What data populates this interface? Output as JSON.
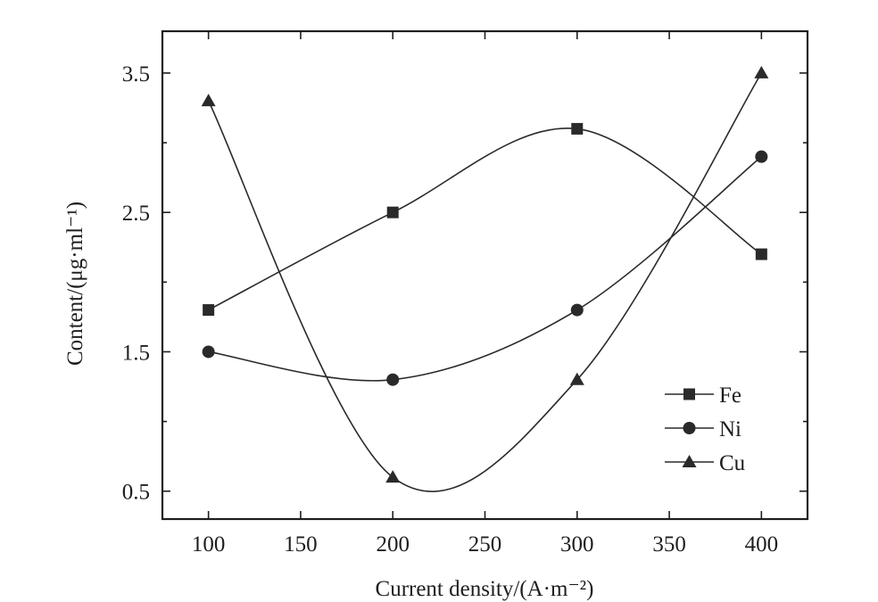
{
  "chart_data": {
    "type": "line",
    "title": "",
    "xlabel": "Current density/(A·m⁻²)",
    "ylabel": "Content/(μg·ml⁻¹)",
    "x": [
      100,
      200,
      300,
      400
    ],
    "xlim": [
      75,
      425
    ],
    "ylim": [
      0.3,
      3.8
    ],
    "xticks": [
      100,
      150,
      200,
      250,
      300,
      350,
      400
    ],
    "yticks": [
      0.5,
      1.5,
      2.5,
      3.5
    ],
    "xtick_labels": [
      "100",
      "150",
      "200",
      "250",
      "300",
      "350",
      "400"
    ],
    "ytick_labels": [
      "0.5",
      "1.5",
      "2.5",
      "3.5"
    ],
    "grid": false,
    "legend_position": "bottom-right",
    "smooth": true,
    "series": [
      {
        "name": "Fe",
        "marker": "square",
        "values": [
          1.8,
          2.5,
          3.1,
          2.2
        ]
      },
      {
        "name": "Ni",
        "marker": "circle",
        "values": [
          1.5,
          1.3,
          1.8,
          2.9
        ]
      },
      {
        "name": "Cu",
        "marker": "triangle",
        "values": [
          3.3,
          0.6,
          1.3,
          3.5
        ]
      }
    ]
  }
}
